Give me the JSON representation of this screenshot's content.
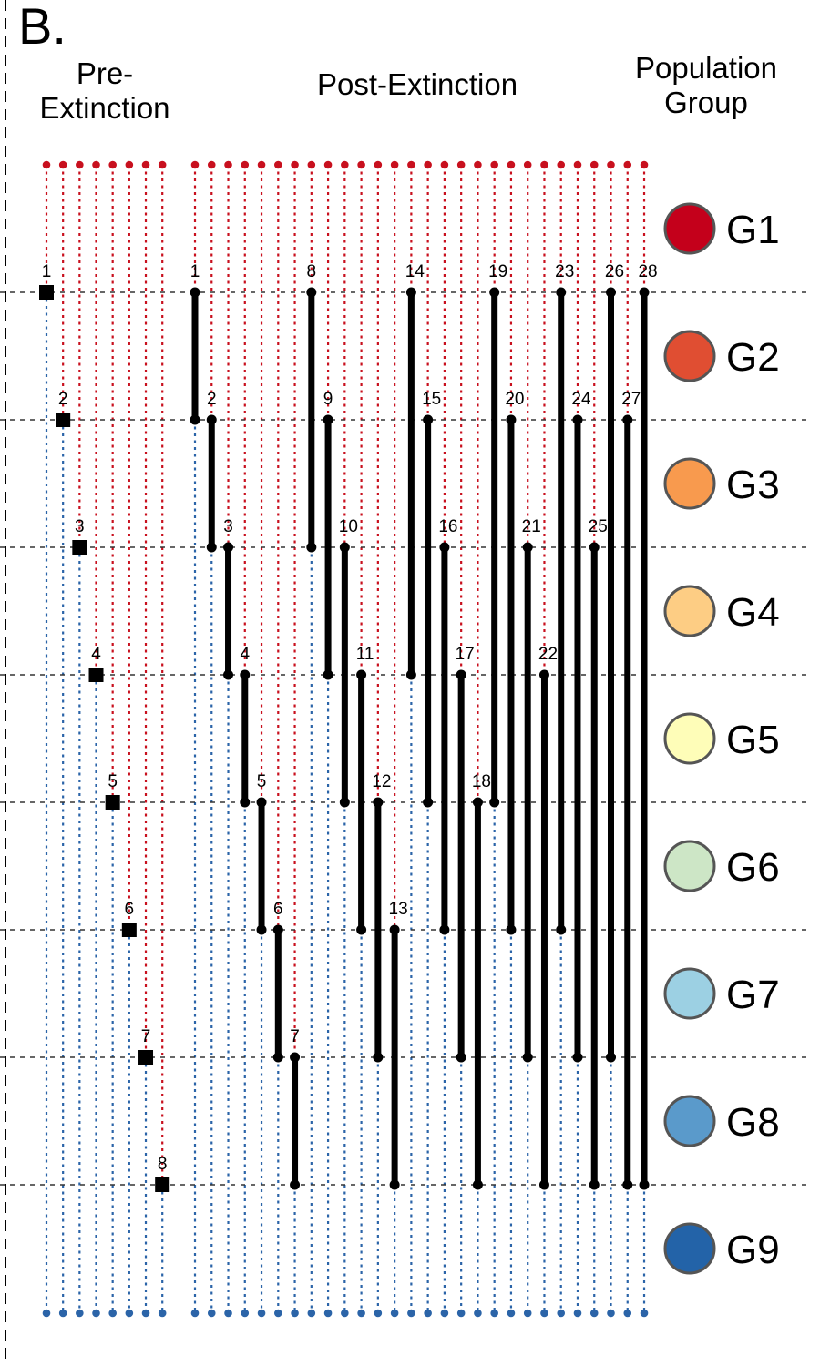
{
  "panel_label": "B.",
  "headers": {
    "pre_line1": "Pre-",
    "pre_line2": "Extinction",
    "post": "Post-Extinction",
    "group_line1": "Population",
    "group_line2": "Group"
  },
  "colors": {
    "upper_dots": "#c8101e",
    "lower_dots": "#2b64a8",
    "bar": "#000000",
    "marker": "#000000",
    "gridline": "#333333"
  },
  "groups": [
    {
      "label": "G1",
      "color": "#c4001b"
    },
    {
      "label": "G2",
      "color": "#e04e32"
    },
    {
      "label": "G3",
      "color": "#f89a4e"
    },
    {
      "label": "G4",
      "color": "#fdcd84"
    },
    {
      "label": "G5",
      "color": "#fefdb8"
    },
    {
      "label": "G6",
      "color": "#cde6c6"
    },
    {
      "label": "G7",
      "color": "#9cd0e3"
    },
    {
      "label": "G8",
      "color": "#5a9acb"
    },
    {
      "label": "G9",
      "color": "#2363a8"
    }
  ],
  "pre_extinction": [
    {
      "label": "1",
      "boundary": 1
    },
    {
      "label": "2",
      "boundary": 2
    },
    {
      "label": "3",
      "boundary": 3
    },
    {
      "label": "4",
      "boundary": 4
    },
    {
      "label": "5",
      "boundary": 5
    },
    {
      "label": "6",
      "boundary": 6
    },
    {
      "label": "7",
      "boundary": 7
    },
    {
      "label": "8",
      "boundary": 8
    }
  ],
  "post_extinction": [
    {
      "label": "1",
      "from": 1,
      "to": 2
    },
    {
      "label": "2",
      "from": 2,
      "to": 3
    },
    {
      "label": "3",
      "from": 3,
      "to": 4
    },
    {
      "label": "4",
      "from": 4,
      "to": 5
    },
    {
      "label": "5",
      "from": 5,
      "to": 6
    },
    {
      "label": "6",
      "from": 6,
      "to": 7
    },
    {
      "label": "7",
      "from": 7,
      "to": 8
    },
    {
      "label": "8",
      "from": 1,
      "to": 3
    },
    {
      "label": "9",
      "from": 2,
      "to": 4
    },
    {
      "label": "10",
      "from": 3,
      "to": 5
    },
    {
      "label": "11",
      "from": 4,
      "to": 6
    },
    {
      "label": "12",
      "from": 5,
      "to": 7
    },
    {
      "label": "13",
      "from": 6,
      "to": 8
    },
    {
      "label": "14",
      "from": 1,
      "to": 4
    },
    {
      "label": "15",
      "from": 2,
      "to": 5
    },
    {
      "label": "16",
      "from": 3,
      "to": 6
    },
    {
      "label": "17",
      "from": 4,
      "to": 7
    },
    {
      "label": "18",
      "from": 5,
      "to": 8
    },
    {
      "label": "19",
      "from": 1,
      "to": 5
    },
    {
      "label": "20",
      "from": 2,
      "to": 6
    },
    {
      "label": "21",
      "from": 3,
      "to": 7
    },
    {
      "label": "22",
      "from": 4,
      "to": 8
    },
    {
      "label": "23",
      "from": 1,
      "to": 6
    },
    {
      "label": "24",
      "from": 2,
      "to": 7
    },
    {
      "label": "25",
      "from": 3,
      "to": 8
    },
    {
      "label": "26",
      "from": 1,
      "to": 7
    },
    {
      "label": "27",
      "from": 2,
      "to": 8
    },
    {
      "label": "28",
      "from": 1,
      "to": 8
    }
  ]
}
